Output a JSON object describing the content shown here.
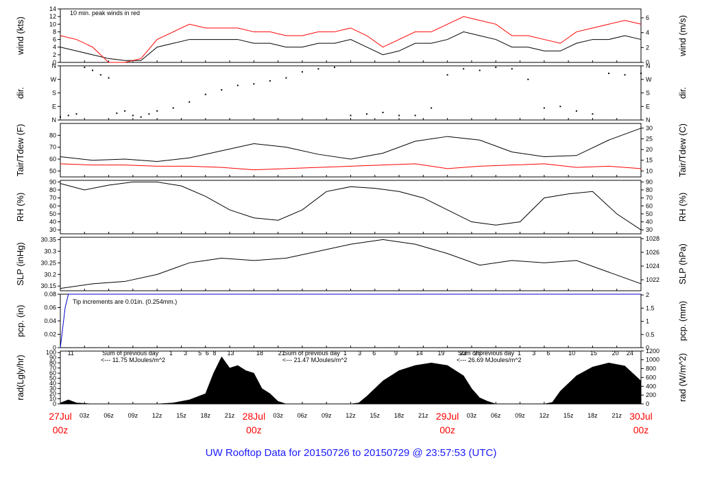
{
  "footer": "UW Rooftop Data for 20150726  to  20150729 @ 23:57:53  (UTC)",
  "colors": {
    "axis": "#000000",
    "red": "#ff0000",
    "blue": "#0000cc",
    "purple": "#9900cc",
    "footer": "#1a1aff"
  },
  "chart_data": [
    {
      "type": "line",
      "id": "wind",
      "ylabel_left": "wind (kts)",
      "ylabel_right": "wind (m/s)",
      "ylim": [
        0,
        14
      ],
      "yticks": [
        0,
        2,
        4,
        6,
        8,
        10,
        12,
        14
      ],
      "ylim_right": [
        0,
        7.2
      ],
      "yticks_right": [
        0,
        2,
        4,
        6
      ],
      "annotation": "10 min. peak winds in red",
      "x": [
        0,
        2,
        4,
        6,
        8,
        10,
        12,
        14,
        16,
        18,
        20,
        22,
        24,
        26,
        28,
        30,
        32,
        34,
        36,
        38,
        40,
        42,
        44,
        46,
        48,
        50,
        52,
        54,
        56,
        58,
        60,
        62,
        64,
        66,
        68,
        70,
        72
      ],
      "series": [
        {
          "color": "#000000",
          "values": [
            4,
            3,
            2,
            1,
            0.5,
            0.5,
            4,
            5,
            6,
            6,
            6,
            6,
            5,
            5,
            4,
            4,
            5,
            5,
            6,
            4,
            2,
            3,
            5,
            5,
            6,
            8,
            7,
            6,
            4,
            4,
            3,
            3,
            5,
            6,
            6,
            7,
            6
          ]
        },
        {
          "color": "#ff0000",
          "values": [
            7,
            6,
            4,
            0,
            0,
            1,
            6,
            8,
            10,
            9,
            9,
            9,
            8,
            8,
            7,
            7,
            8,
            8,
            9,
            7,
            4,
            6,
            8,
            8,
            10,
            12,
            11,
            10,
            7,
            7,
            6,
            5,
            8,
            9,
            10,
            11,
            10
          ]
        }
      ]
    },
    {
      "type": "scatter",
      "id": "dir",
      "ylabel_left": "dir.",
      "ylabel_right": "dir.",
      "ylim": [
        0,
        360
      ],
      "ytick_labels": [
        "N",
        "E",
        "S",
        "W",
        "N"
      ],
      "yticks": [
        0,
        90,
        180,
        270,
        360
      ],
      "series": [
        {
          "color": "#000000",
          "points": [
            [
              0,
              20
            ],
            [
              1,
              30
            ],
            [
              2,
              40
            ],
            [
              3,
              350
            ],
            [
              4,
              330
            ],
            [
              5,
              300
            ],
            [
              6,
              280
            ],
            [
              7,
              45
            ],
            [
              8,
              60
            ],
            [
              9,
              30
            ],
            [
              10,
              20
            ],
            [
              11,
              40
            ],
            [
              12,
              60
            ],
            [
              14,
              80
            ],
            [
              16,
              120
            ],
            [
              18,
              170
            ],
            [
              20,
              200
            ],
            [
              22,
              230
            ],
            [
              24,
              240
            ],
            [
              26,
              260
            ],
            [
              28,
              280
            ],
            [
              30,
              320
            ],
            [
              32,
              340
            ],
            [
              34,
              350
            ],
            [
              36,
              30
            ],
            [
              38,
              40
            ],
            [
              40,
              50
            ],
            [
              42,
              30
            ],
            [
              44,
              30
            ],
            [
              46,
              80
            ],
            [
              48,
              300
            ],
            [
              50,
              340
            ],
            [
              52,
              330
            ],
            [
              54,
              350
            ],
            [
              56,
              340
            ],
            [
              58,
              270
            ],
            [
              60,
              80
            ],
            [
              62,
              90
            ],
            [
              64,
              60
            ],
            [
              66,
              40
            ],
            [
              68,
              310
            ],
            [
              70,
              300
            ],
            [
              72,
              310
            ]
          ]
        }
      ]
    },
    {
      "type": "line",
      "id": "temp",
      "ylabel_left": "Tair/Tdew (F)",
      "ylabel_right": "Tair/Tdew (C)",
      "ylim": [
        45,
        90
      ],
      "yticks": [
        50,
        60,
        70,
        80
      ],
      "ylim_right": [
        7.2,
        32.2
      ],
      "yticks_right": [
        10,
        15,
        20,
        25,
        30
      ],
      "x": [
        0,
        4,
        8,
        12,
        16,
        20,
        24,
        28,
        32,
        36,
        40,
        44,
        48,
        52,
        56,
        60,
        64,
        68,
        72
      ],
      "series": [
        {
          "name": "Tair",
          "color": "#000000",
          "values": [
            62,
            59,
            60,
            58,
            61,
            67,
            73,
            70,
            64,
            60,
            65,
            75,
            79,
            76,
            66,
            62,
            63,
            76,
            86
          ]
        },
        {
          "name": "Tdew",
          "color": "#ff0000",
          "values": [
            56,
            55,
            55,
            54,
            54,
            53,
            51,
            52,
            53,
            54,
            55,
            56,
            52,
            54,
            55,
            56,
            53,
            54,
            52
          ]
        }
      ]
    },
    {
      "type": "line",
      "id": "rh",
      "ylabel_left": "RH (%)",
      "ylabel_right": "RH (%)",
      "ylim": [
        25,
        92
      ],
      "yticks": [
        30,
        40,
        50,
        60,
        70,
        80,
        90
      ],
      "x": [
        0,
        3,
        6,
        9,
        12,
        15,
        18,
        21,
        24,
        27,
        30,
        33,
        36,
        39,
        42,
        45,
        48,
        51,
        54,
        57,
        60,
        63,
        66,
        69,
        72
      ],
      "series": [
        {
          "color": "#000000",
          "values": [
            88,
            80,
            86,
            90,
            90,
            85,
            72,
            55,
            45,
            42,
            55,
            78,
            84,
            82,
            78,
            70,
            55,
            40,
            36,
            40,
            70,
            75,
            78,
            50,
            30
          ]
        }
      ]
    },
    {
      "type": "line",
      "id": "slp",
      "ylabel_left": "SLP (inHg)",
      "ylabel_right": "SLP (hPa)",
      "ylim": [
        30.13,
        30.36
      ],
      "yticks": [
        30.15,
        30.2,
        30.25,
        30.3,
        30.35
      ],
      "ylim_right": [
        1020.4,
        1028.2
      ],
      "yticks_right": [
        1022,
        1024,
        1026,
        1028
      ],
      "x": [
        0,
        4,
        8,
        12,
        16,
        20,
        24,
        28,
        32,
        36,
        40,
        44,
        48,
        52,
        56,
        60,
        64,
        68,
        72
      ],
      "series": [
        {
          "color": "#000000",
          "values": [
            30.14,
            30.16,
            30.17,
            30.2,
            30.25,
            30.27,
            30.26,
            30.27,
            30.3,
            30.33,
            30.35,
            30.33,
            30.29,
            30.24,
            30.26,
            30.25,
            30.26,
            30.21,
            30.16
          ]
        }
      ]
    },
    {
      "type": "line",
      "id": "pcp",
      "ylabel_left": "pcp. (in)",
      "ylabel_right": "pcp. (mm)",
      "ylim": [
        0,
        0.08
      ],
      "yticks": [
        0,
        0.02,
        0.04,
        0.06,
        0.08
      ],
      "ylim_right": [
        0,
        2.03
      ],
      "yticks_right": [
        0,
        0.5,
        1,
        1.5,
        2
      ],
      "annotation": "Tip increments are 0.01in. (0.254mm.)",
      "x": [
        0,
        0.2,
        0.4,
        0.6,
        0.8,
        1,
        72
      ],
      "series": [
        {
          "color": "#0000cc",
          "values": [
            0,
            0.02,
            0.04,
            0.06,
            0.07,
            0.08,
            0.08
          ]
        }
      ]
    },
    {
      "type": "area",
      "id": "rad",
      "ylabel_left": "rad(Lgly/hr)",
      "ylabel_right": "rad (W/m^2)",
      "ylim": [
        0,
        103
      ],
      "yticks": [
        0,
        10,
        20,
        30,
        40,
        50,
        60,
        70,
        80,
        90,
        100
      ],
      "ylim_right": [
        0,
        1197
      ],
      "yticks_right": [
        0,
        200,
        400,
        600,
        800,
        1000,
        1200
      ],
      "hour_labels": [
        {
          "x": 1,
          "text": "11"
        },
        {
          "x": 15,
          "text": "1"
        },
        {
          "x": 17,
          "text": "3"
        },
        {
          "x": 19,
          "text": "5"
        },
        {
          "x": 20,
          "text": "6"
        },
        {
          "x": 21,
          "text": "8"
        },
        {
          "x": 23,
          "text": "13"
        },
        {
          "x": 27,
          "text": "18"
        },
        {
          "x": 30,
          "text": "21"
        },
        {
          "x": 39,
          "text": "1"
        },
        {
          "x": 41,
          "text": "3"
        },
        {
          "x": 43,
          "text": "6"
        },
        {
          "x": 46,
          "text": "9"
        },
        {
          "x": 49,
          "text": "14"
        },
        {
          "x": 52,
          "text": "19"
        },
        {
          "x": 55,
          "text": "23"
        },
        {
          "x": 57,
          "text": "26"
        },
        {
          "x": 63,
          "text": "1"
        },
        {
          "x": 65,
          "text": "3"
        },
        {
          "x": 67,
          "text": "6"
        },
        {
          "x": 70,
          "text": "10"
        },
        {
          "x": 73,
          "text": "15"
        },
        {
          "x": 76,
          "text": "20"
        },
        {
          "x": 78,
          "text": "24"
        }
      ],
      "daily_sums": [
        {
          "x": 2,
          "label": "Sum of previous day",
          "value": "<--- 11.75 MJoules/m^2"
        },
        {
          "x": 27,
          "label": "Sum of previous day",
          "value": "<--- 21.47 MJoules/m^2"
        },
        {
          "x": 51,
          "label": "Sum of previous day",
          "value": "<--- 26.69 MJoules/m^2"
        }
      ],
      "x": [
        0,
        1,
        2,
        3,
        4,
        5,
        6,
        12,
        14,
        16,
        18,
        19,
        20,
        21,
        22,
        23,
        24,
        25,
        26,
        27,
        28,
        36,
        37,
        38,
        40,
        42,
        44,
        46,
        48,
        50,
        51,
        52,
        53,
        54,
        60,
        61,
        62,
        64,
        66,
        68,
        70,
        72
      ],
      "series": [
        {
          "color": "#000000",
          "values": [
            2,
            8,
            2,
            1,
            0,
            0,
            0,
            0,
            2,
            8,
            20,
            60,
            92,
            70,
            75,
            65,
            60,
            30,
            20,
            5,
            0,
            0,
            2,
            15,
            45,
            65,
            75,
            80,
            75,
            55,
            30,
            12,
            5,
            0,
            0,
            3,
            25,
            55,
            72,
            80,
            74,
            45
          ]
        }
      ]
    }
  ],
  "x_axis": {
    "hour_ticks": [
      "03z",
      "06z",
      "09z",
      "12z",
      "15z",
      "18z",
      "21z",
      "03z",
      "06z",
      "09z",
      "12z",
      "15z",
      "18z",
      "21z",
      "03z",
      "06z",
      "09z",
      "12z",
      "15z",
      "18z",
      "21z"
    ],
    "hour_tick_pos": [
      3,
      6,
      9,
      12,
      15,
      18,
      21,
      27,
      30,
      33,
      36,
      39,
      42,
      45,
      51,
      54,
      57,
      60,
      63,
      66,
      69
    ],
    "days": [
      {
        "x": 0,
        "date": "27Jul",
        "hour": "00z"
      },
      {
        "x": 24,
        "date": "28Jul",
        "hour": "00z"
      },
      {
        "x": 48,
        "date": "29Jul",
        "hour": "00z"
      },
      {
        "x": 72,
        "date": "30Jul",
        "hour": "00z"
      }
    ]
  }
}
